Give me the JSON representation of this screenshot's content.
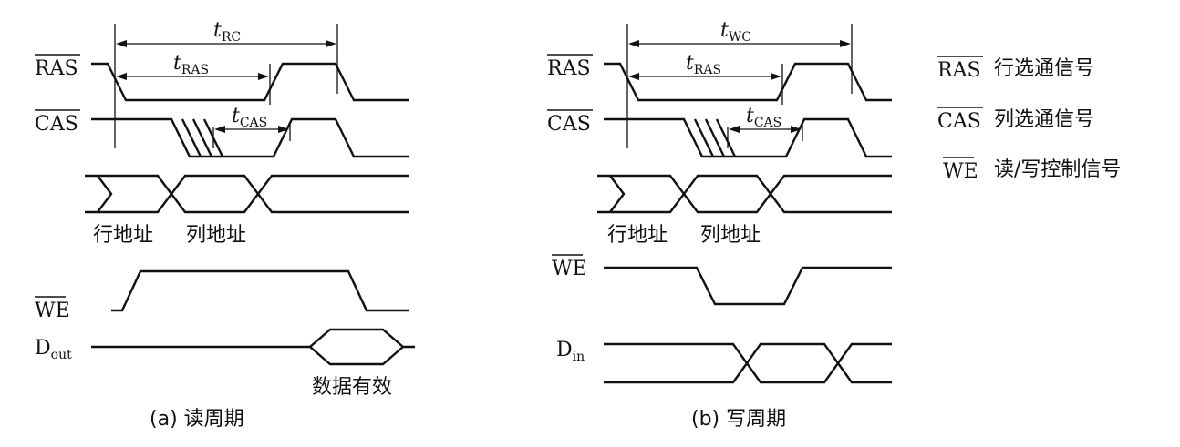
{
  "signals": {
    "ras": "RAS",
    "cas": "CAS",
    "we": "WE",
    "d": "D",
    "out_sub": "out",
    "in_sub": "in"
  },
  "timing": {
    "t": "t",
    "rc_sub": "RC",
    "wc_sub": "WC",
    "ras_sub": "RAS",
    "cas_sub": "CAS"
  },
  "address": {
    "row": "行地址",
    "col": "列地址"
  },
  "data_valid": "数据有效",
  "captions": {
    "read": "(a) 读周期",
    "write": "(b) 写周期"
  },
  "legend": [
    {
      "signal": "RAS",
      "text": "行选通信号"
    },
    {
      "signal": "CAS",
      "text": "列选通信号"
    },
    {
      "signal": "WE",
      "text": "读/写控制信号"
    }
  ]
}
